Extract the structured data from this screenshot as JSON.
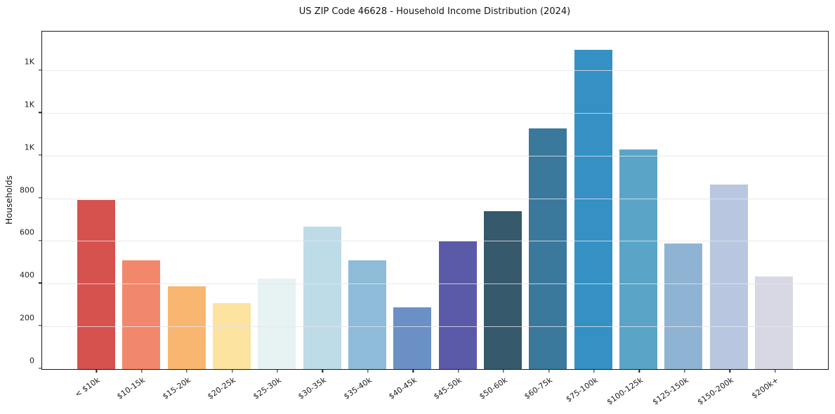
{
  "chart": {
    "title": "US ZIP Code 46628 - Household Income Distribution (2024)",
    "ylabel": "Households"
  },
  "chart_data": {
    "type": "bar",
    "title": "US ZIP Code 46628 - Household Income Distribution (2024)",
    "xlabel": "",
    "ylabel": "Households",
    "categories": [
      "< $10k",
      "$10-15k",
      "$15-20k",
      "$20-25k",
      "$25-30k",
      "$30-35k",
      "$35-40k",
      "$40-45k",
      "$45-50k",
      "$50-60k",
      "$60-75k",
      "$75-100k",
      "$100-125k",
      "$125-150k",
      "$150-200k",
      "$200k+"
    ],
    "values": [
      795,
      510,
      390,
      310,
      425,
      670,
      510,
      290,
      598,
      740,
      1130,
      1500,
      1030,
      590,
      865,
      435
    ],
    "bar_colors": [
      "#d5524e",
      "#f2886b",
      "#f9b671",
      "#fce3a0",
      "#e7f2f2",
      "#bedce8",
      "#8ebbd8",
      "#6a90c5",
      "#5a5aa8",
      "#36596b",
      "#3a799c",
      "#3590c4",
      "#5aa5c7",
      "#8fb4d3",
      "#b8c7df",
      "#d8d8e5"
    ],
    "ylim": [
      0,
      1584
    ],
    "yticks": [
      {
        "value": 0,
        "label": "0"
      },
      {
        "value": 200,
        "label": "200"
      },
      {
        "value": 400,
        "label": "400"
      },
      {
        "value": 600,
        "label": "600"
      },
      {
        "value": 800,
        "label": "800"
      },
      {
        "value": 1000,
        "label": "1K"
      },
      {
        "value": 1200,
        "label": "1K"
      },
      {
        "value": 1400,
        "label": "1K"
      }
    ],
    "grid": true,
    "legend": "none",
    "background": "#ffffff",
    "spine_color": "#1a1a1a"
  }
}
